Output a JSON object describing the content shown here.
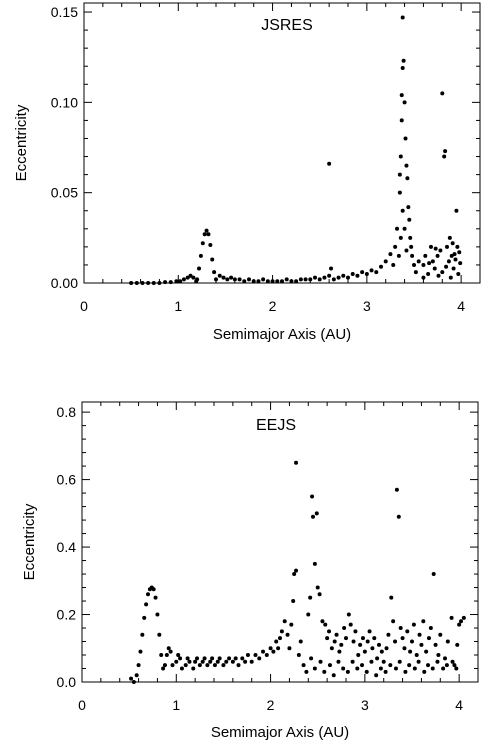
{
  "chart_data": [
    {
      "type": "scatter",
      "title": "JSRES",
      "xlabel": "Semimajor Axis (AU)",
      "ylabel": "Eccentricity",
      "xlim": [
        0,
        4.2
      ],
      "ylim": [
        0,
        0.155
      ],
      "xticks": [
        {
          "v": 0,
          "label": "0"
        },
        {
          "v": 1,
          "label": "1"
        },
        {
          "v": 2,
          "label": "2"
        },
        {
          "v": 3,
          "label": "3"
        },
        {
          "v": 4,
          "label": "4"
        }
      ],
      "yticks": [
        {
          "v": 0.0,
          "label": "0.00"
        },
        {
          "v": 0.05,
          "label": "0.05"
        },
        {
          "v": 0.1,
          "label": "0.10"
        },
        {
          "v": 0.15,
          "label": "0.15"
        }
      ],
      "grid": false,
      "legend": "none",
      "color": "#000000",
      "points": [
        [
          0.5,
          0.0
        ],
        [
          0.56,
          0.0
        ],
        [
          0.62,
          0.0
        ],
        [
          0.68,
          0.0
        ],
        [
          0.74,
          0.0
        ],
        [
          0.8,
          0.0
        ],
        [
          0.86,
          0.0005
        ],
        [
          0.92,
          0.0005
        ],
        [
          0.98,
          0.001
        ],
        [
          1.02,
          0.001
        ],
        [
          1.06,
          0.002
        ],
        [
          1.1,
          0.003
        ],
        [
          1.13,
          0.004
        ],
        [
          1.16,
          0.003
        ],
        [
          1.19,
          0.001
        ],
        [
          1.2,
          0.002
        ],
        [
          1.22,
          0.008
        ],
        [
          1.24,
          0.015
        ],
        [
          1.26,
          0.022
        ],
        [
          1.28,
          0.027
        ],
        [
          1.3,
          0.029
        ],
        [
          1.32,
          0.027
        ],
        [
          1.34,
          0.021
        ],
        [
          1.36,
          0.013
        ],
        [
          1.38,
          0.006
        ],
        [
          1.4,
          0.002
        ],
        [
          1.44,
          0.004
        ],
        [
          1.48,
          0.003
        ],
        [
          1.52,
          0.002
        ],
        [
          1.56,
          0.003
        ],
        [
          1.6,
          0.002
        ],
        [
          1.65,
          0.002
        ],
        [
          1.7,
          0.001
        ],
        [
          1.75,
          0.002
        ],
        [
          1.8,
          0.001
        ],
        [
          1.85,
          0.001
        ],
        [
          1.9,
          0.002
        ],
        [
          1.95,
          0.001
        ],
        [
          2.0,
          0.001
        ],
        [
          2.05,
          0.001
        ],
        [
          2.1,
          0.001
        ],
        [
          2.15,
          0.002
        ],
        [
          2.2,
          0.001
        ],
        [
          2.25,
          0.001
        ],
        [
          2.3,
          0.002
        ],
        [
          2.35,
          0.002
        ],
        [
          2.4,
          0.002
        ],
        [
          2.45,
          0.003
        ],
        [
          2.5,
          0.002
        ],
        [
          2.55,
          0.003
        ],
        [
          2.6,
          0.004
        ],
        [
          2.65,
          0.002
        ],
        [
          2.7,
          0.003
        ],
        [
          2.75,
          0.004
        ],
        [
          2.8,
          0.003
        ],
        [
          2.85,
          0.005
        ],
        [
          2.9,
          0.004
        ],
        [
          2.95,
          0.006
        ],
        [
          3.0,
          0.005
        ],
        [
          3.05,
          0.007
        ],
        [
          3.1,
          0.006
        ],
        [
          3.15,
          0.009
        ],
        [
          3.2,
          0.012
        ],
        [
          3.25,
          0.016
        ],
        [
          3.28,
          0.01
        ],
        [
          2.6,
          0.066
        ],
        [
          2.62,
          0.008
        ],
        [
          3.3,
          0.02
        ],
        [
          3.32,
          0.03
        ],
        [
          3.35,
          0.05
        ],
        [
          3.36,
          0.07
        ],
        [
          3.37,
          0.09
        ],
        [
          3.37,
          0.104
        ],
        [
          3.38,
          0.119
        ],
        [
          3.38,
          0.147
        ],
        [
          3.39,
          0.123
        ],
        [
          3.4,
          0.1
        ],
        [
          3.41,
          0.08
        ],
        [
          3.42,
          0.065
        ],
        [
          3.43,
          0.058
        ],
        [
          3.44,
          0.042
        ],
        [
          3.45,
          0.035
        ],
        [
          3.46,
          0.025
        ],
        [
          3.47,
          0.02
        ],
        [
          3.48,
          0.015
        ],
        [
          3.5,
          0.01
        ],
        [
          3.52,
          0.006
        ],
        [
          3.4,
          0.03
        ],
        [
          3.36,
          0.025
        ],
        [
          3.34,
          0.015
        ],
        [
          3.42,
          0.018
        ],
        [
          3.38,
          0.04
        ],
        [
          3.35,
          0.06
        ],
        [
          3.55,
          0.012
        ],
        [
          3.6,
          0.01
        ],
        [
          3.62,
          0.015
        ],
        [
          3.65,
          0.005
        ],
        [
          3.68,
          0.02
        ],
        [
          3.7,
          0.012
        ],
        [
          3.72,
          0.008
        ],
        [
          3.75,
          0.015
        ],
        [
          3.78,
          0.018
        ],
        [
          3.8,
          0.006
        ],
        [
          3.8,
          0.105
        ],
        [
          3.82,
          0.07
        ],
        [
          3.83,
          0.073
        ],
        [
          3.85,
          0.02
        ],
        [
          3.87,
          0.012
        ],
        [
          3.88,
          0.025
        ],
        [
          3.9,
          0.015
        ],
        [
          3.92,
          0.008
        ],
        [
          3.94,
          0.013
        ],
        [
          3.95,
          0.04
        ],
        [
          3.96,
          0.02
        ],
        [
          3.97,
          0.005
        ],
        [
          3.98,
          0.017
        ],
        [
          3.6,
          0.003
        ],
        [
          3.66,
          0.011
        ],
        [
          3.73,
          0.019
        ],
        [
          3.76,
          0.004
        ],
        [
          3.84,
          0.009
        ],
        [
          3.89,
          0.003
        ],
        [
          3.91,
          0.022
        ],
        [
          3.93,
          0.016
        ],
        [
          3.99,
          0.011
        ]
      ]
    },
    {
      "type": "scatter",
      "title": "EEJS",
      "xlabel": "Semimajor Axis (AU)",
      "ylabel": "Eccentricity",
      "xlim": [
        0,
        4.2
      ],
      "ylim": [
        0,
        0.83
      ],
      "xticks": [
        {
          "v": 0,
          "label": "0"
        },
        {
          "v": 1,
          "label": "1"
        },
        {
          "v": 2,
          "label": "2"
        },
        {
          "v": 3,
          "label": "3"
        },
        {
          "v": 4,
          "label": "4"
        }
      ],
      "yticks": [
        {
          "v": 0.0,
          "label": "0.0"
        },
        {
          "v": 0.2,
          "label": "0.2"
        },
        {
          "v": 0.4,
          "label": "0.4"
        },
        {
          "v": 0.6,
          "label": "0.6"
        },
        {
          "v": 0.8,
          "label": "0.8"
        }
      ],
      "grid": false,
      "legend": "none",
      "color": "#000000",
      "points": [
        [
          0.52,
          0.01
        ],
        [
          0.55,
          0.0
        ],
        [
          0.58,
          0.02
        ],
        [
          0.6,
          0.05
        ],
        [
          0.62,
          0.09
        ],
        [
          0.64,
          0.14
        ],
        [
          0.66,
          0.19
        ],
        [
          0.68,
          0.23
        ],
        [
          0.7,
          0.26
        ],
        [
          0.72,
          0.275
        ],
        [
          0.74,
          0.28
        ],
        [
          0.76,
          0.275
        ],
        [
          0.78,
          0.25
        ],
        [
          0.8,
          0.2
        ],
        [
          0.82,
          0.14
        ],
        [
          0.84,
          0.08
        ],
        [
          0.86,
          0.04
        ],
        [
          0.88,
          0.05
        ],
        [
          0.9,
          0.08
        ],
        [
          0.92,
          0.1
        ],
        [
          0.94,
          0.09
        ],
        [
          0.96,
          0.05
        ],
        [
          1.0,
          0.06
        ],
        [
          1.02,
          0.08
        ],
        [
          1.04,
          0.07
        ],
        [
          1.06,
          0.04
        ],
        [
          1.1,
          0.05
        ],
        [
          1.12,
          0.07
        ],
        [
          1.14,
          0.06
        ],
        [
          1.18,
          0.04
        ],
        [
          1.2,
          0.06
        ],
        [
          1.22,
          0.07
        ],
        [
          1.25,
          0.05
        ],
        [
          1.28,
          0.06
        ],
        [
          1.3,
          0.07
        ],
        [
          1.33,
          0.05
        ],
        [
          1.36,
          0.06
        ],
        [
          1.38,
          0.07
        ],
        [
          1.41,
          0.05
        ],
        [
          1.44,
          0.06
        ],
        [
          1.46,
          0.07
        ],
        [
          1.5,
          0.05
        ],
        [
          1.53,
          0.06
        ],
        [
          1.56,
          0.07
        ],
        [
          1.6,
          0.06
        ],
        [
          1.63,
          0.07
        ],
        [
          1.66,
          0.05
        ],
        [
          1.7,
          0.07
        ],
        [
          1.73,
          0.06
        ],
        [
          1.76,
          0.08
        ],
        [
          1.8,
          0.06
        ],
        [
          1.84,
          0.08
        ],
        [
          1.88,
          0.07
        ],
        [
          1.92,
          0.09
        ],
        [
          1.96,
          0.08
        ],
        [
          2.0,
          0.1
        ],
        [
          2.03,
          0.09
        ],
        [
          2.06,
          0.12
        ],
        [
          2.08,
          0.1
        ],
        [
          2.1,
          0.13
        ],
        [
          2.12,
          0.15
        ],
        [
          2.15,
          0.18
        ],
        [
          2.18,
          0.14
        ],
        [
          2.2,
          0.1
        ],
        [
          2.22,
          0.17
        ],
        [
          2.24,
          0.24
        ],
        [
          2.25,
          0.32
        ],
        [
          2.27,
          0.33
        ],
        [
          2.27,
          0.65
        ],
        [
          2.3,
          0.08
        ],
        [
          2.32,
          0.12
        ],
        [
          2.4,
          0.2
        ],
        [
          2.42,
          0.25
        ],
        [
          2.44,
          0.55
        ],
        [
          2.45,
          0.49
        ],
        [
          2.47,
          0.35
        ],
        [
          2.49,
          0.5
        ],
        [
          2.5,
          0.28
        ],
        [
          2.52,
          0.26
        ],
        [
          2.55,
          0.18
        ],
        [
          2.58,
          0.17
        ],
        [
          2.6,
          0.13
        ],
        [
          2.62,
          0.15
        ],
        [
          2.65,
          0.1
        ],
        [
          2.68,
          0.12
        ],
        [
          2.7,
          0.14
        ],
        [
          2.73,
          0.09
        ],
        [
          2.75,
          0.11
        ],
        [
          2.78,
          0.16
        ],
        [
          2.8,
          0.13
        ],
        [
          2.83,
          0.2
        ],
        [
          2.85,
          0.17
        ],
        [
          2.88,
          0.12
        ],
        [
          2.9,
          0.15
        ],
        [
          2.93,
          0.08
        ],
        [
          2.95,
          0.11
        ],
        [
          2.98,
          0.13
        ],
        [
          3.0,
          0.09
        ],
        [
          3.03,
          0.12
        ],
        [
          3.05,
          0.15
        ],
        [
          3.08,
          0.1
        ],
        [
          3.1,
          0.13
        ],
        [
          3.13,
          0.07
        ],
        [
          3.15,
          0.11
        ],
        [
          3.18,
          0.09
        ],
        [
          3.2,
          0.06
        ],
        [
          3.23,
          0.1
        ],
        [
          3.25,
          0.14
        ],
        [
          3.28,
          0.25
        ],
        [
          3.3,
          0.18
        ],
        [
          3.32,
          0.12
        ],
        [
          3.34,
          0.57
        ],
        [
          3.36,
          0.49
        ],
        [
          3.38,
          0.16
        ],
        [
          3.4,
          0.13
        ],
        [
          3.42,
          0.1
        ],
        [
          3.45,
          0.15
        ],
        [
          3.48,
          0.09
        ],
        [
          3.5,
          0.12
        ],
        [
          3.52,
          0.17
        ],
        [
          3.55,
          0.08
        ],
        [
          3.58,
          0.14
        ],
        [
          3.6,
          0.11
        ],
        [
          3.62,
          0.18
        ],
        [
          3.65,
          0.09
        ],
        [
          3.68,
          0.13
        ],
        [
          3.7,
          0.16
        ],
        [
          3.73,
          0.32
        ],
        [
          3.75,
          0.11
        ],
        [
          3.78,
          0.08
        ],
        [
          3.8,
          0.14
        ],
        [
          3.85,
          0.07
        ],
        [
          3.88,
          0.12
        ],
        [
          3.92,
          0.19
        ],
        [
          3.95,
          0.05
        ],
        [
          3.98,
          0.11
        ],
        [
          4.0,
          0.17
        ],
        [
          4.02,
          0.18
        ],
        [
          4.05,
          0.19
        ],
        [
          2.35,
          0.05
        ],
        [
          2.38,
          0.03
        ],
        [
          2.43,
          0.07
        ],
        [
          2.47,
          0.04
        ],
        [
          2.53,
          0.06
        ],
        [
          2.57,
          0.03
        ],
        [
          2.63,
          0.05
        ],
        [
          2.67,
          0.02
        ],
        [
          2.72,
          0.06
        ],
        [
          2.77,
          0.04
        ],
        [
          2.82,
          0.03
        ],
        [
          2.87,
          0.06
        ],
        [
          2.92,
          0.04
        ],
        [
          2.97,
          0.05
        ],
        [
          3.02,
          0.03
        ],
        [
          3.07,
          0.06
        ],
        [
          3.12,
          0.02
        ],
        [
          3.17,
          0.04
        ],
        [
          3.22,
          0.03
        ],
        [
          3.27,
          0.05
        ],
        [
          3.33,
          0.04
        ],
        [
          3.37,
          0.06
        ],
        [
          3.43,
          0.03
        ],
        [
          3.47,
          0.05
        ],
        [
          3.53,
          0.04
        ],
        [
          3.57,
          0.06
        ],
        [
          3.63,
          0.03
        ],
        [
          3.67,
          0.05
        ],
        [
          3.72,
          0.04
        ],
        [
          3.77,
          0.06
        ],
        [
          3.83,
          0.04
        ],
        [
          3.87,
          0.05
        ],
        [
          3.93,
          0.06
        ],
        [
          3.97,
          0.04
        ]
      ]
    }
  ]
}
